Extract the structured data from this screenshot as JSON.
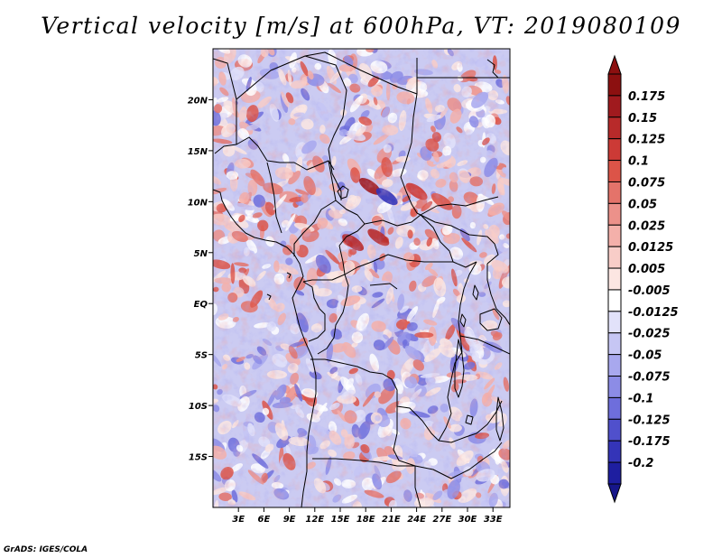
{
  "title": "Vertical velocity [m/s] at 600hPa, VT: 2019080109",
  "credit": "GrADS: IGES/COLA",
  "map": {
    "lon_range": [
      0,
      35
    ],
    "lat_range": [
      -20,
      25
    ],
    "lon_ticks": [
      {
        "value": 3,
        "label": "3E"
      },
      {
        "value": 6,
        "label": "6E"
      },
      {
        "value": 9,
        "label": "9E"
      },
      {
        "value": 12,
        "label": "12E"
      },
      {
        "value": 15,
        "label": "15E"
      },
      {
        "value": 18,
        "label": "18E"
      },
      {
        "value": 21,
        "label": "21E"
      },
      {
        "value": 24,
        "label": "24E"
      },
      {
        "value": 27,
        "label": "27E"
      },
      {
        "value": 30,
        "label": "30E"
      },
      {
        "value": 33,
        "label": "33E"
      }
    ],
    "lat_ticks": [
      {
        "value": 20,
        "label": "20N"
      },
      {
        "value": 15,
        "label": "15N"
      },
      {
        "value": 10,
        "label": "10N"
      },
      {
        "value": 5,
        "label": "5N"
      },
      {
        "value": 0,
        "label": "EQ"
      },
      {
        "value": -5,
        "label": "5S"
      },
      {
        "value": -10,
        "label": "10S"
      },
      {
        "value": -15,
        "label": "15S"
      }
    ]
  },
  "colorbar": {
    "levels": [
      {
        "label": "0.175",
        "color": "#a01a1e"
      },
      {
        "label": "0.15",
        "color": "#b82a2a"
      },
      {
        "label": "0.125",
        "color": "#cc3a36"
      },
      {
        "label": "0.1",
        "color": "#dc5448"
      },
      {
        "label": "0.075",
        "color": "#e4736a"
      },
      {
        "label": "0.05",
        "color": "#ec918a"
      },
      {
        "label": "0.025",
        "color": "#f4b0aa"
      },
      {
        "label": "0.0125",
        "color": "#f8cdc8"
      },
      {
        "label": "0.005",
        "color": "#fce6e2"
      },
      {
        "label": "-0.005",
        "color": "#ffffff"
      },
      {
        "label": "-0.0125",
        "color": "#e2e2fa"
      },
      {
        "label": "-0.025",
        "color": "#c6c6f4"
      },
      {
        "label": "-0.05",
        "color": "#a8a8ee"
      },
      {
        "label": "-0.075",
        "color": "#8c8ce6"
      },
      {
        "label": "-0.1",
        "color": "#6e6edc"
      },
      {
        "label": "-0.125",
        "color": "#5050cc"
      },
      {
        "label": "-0.175",
        "color": "#3434b8"
      },
      {
        "label": "-0.2",
        "color": "#1e1ea0"
      }
    ],
    "top_color": "#8c1010",
    "bottom_color": "#16168a"
  }
}
